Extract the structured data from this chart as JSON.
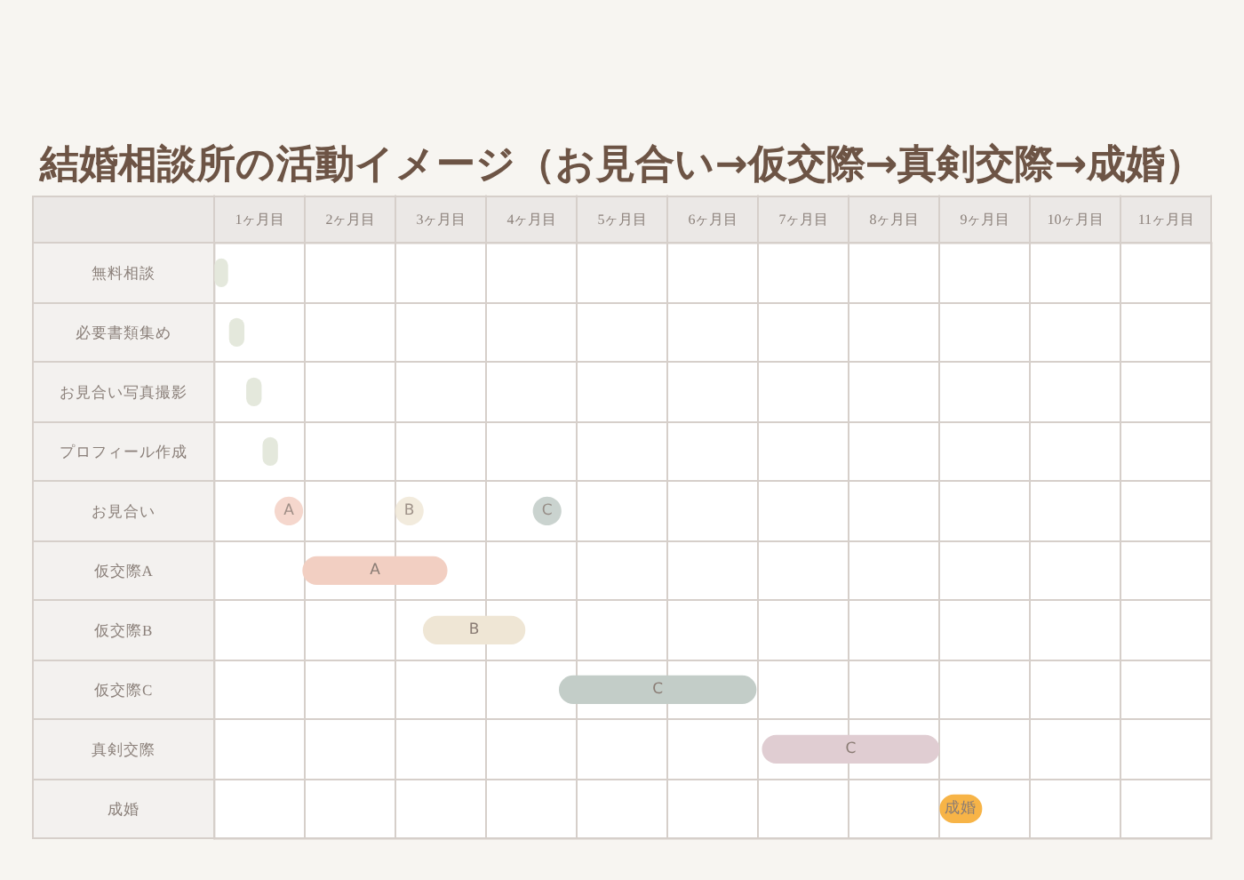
{
  "chart_data": {
    "type": "bar",
    "title": "結婚相談所の活動イメージ（お見合い→仮交際→真剣交際→成婚）",
    "orientation": "horizontal",
    "categories": [
      "無料相談",
      "必要書類集め",
      "お見合い写真撮影",
      "プロフィール作成",
      "お見合い",
      "仮交際A",
      "仮交際B",
      "仮交際C",
      "真剣交際",
      "成婚"
    ],
    "series": [
      {
        "colors": [
          "#e4e8dc",
          "#e4e8dc",
          "#e4e8dc",
          "#e4e8dc",
          null,
          "#f2cfc2",
          "#efe6d5",
          "#c3cdc8",
          "#e0cdd2",
          "#f7b447"
        ],
        "base": [
          0,
          0.16,
          0.35,
          0.53,
          null,
          0.97,
          2.3,
          3.8,
          6.04,
          8.0
        ],
        "values": [
          0.15,
          0.17,
          0.17,
          0.17,
          null,
          1.6,
          1.13,
          2.18,
          1.96,
          0.47
        ],
        "value_labels": [
          null,
          null,
          null,
          null,
          null,
          "A",
          "B",
          "C",
          "C",
          "成婚"
        ]
      },
      {
        "type": "scatter",
        "marker": "circle",
        "x": [
          "お見合い",
          "お見合い",
          "お見合い"
        ],
        "values": [
          0.82,
          2.15,
          3.67
        ],
        "colors": [
          "#f2cdc0",
          "#efe6d5",
          "#bdc8c3"
        ],
        "value_labels": [
          "A",
          "B",
          "C"
        ]
      }
    ],
    "xlim": [
      0,
      11
    ],
    "xticks": [
      {
        "value": 0,
        "label": null
      },
      {
        "value": 0.5,
        "label": "1ヶ月目"
      },
      {
        "value": 1,
        "label": null
      },
      {
        "value": 1.5,
        "label": "2ヶ月目"
      },
      {
        "value": 2,
        "label": null
      },
      {
        "value": 2.5,
        "label": "3ヶ月目"
      },
      {
        "value": 3,
        "label": null
      },
      {
        "value": 3.5,
        "label": "4ヶ月目"
      },
      {
        "value": 4,
        "label": null
      },
      {
        "value": 4.5,
        "label": "5ヶ月目"
      },
      {
        "value": 5,
        "label": null
      },
      {
        "value": 5.5,
        "label": "6ヶ月目"
      },
      {
        "value": 6,
        "label": null
      },
      {
        "value": 6.5,
        "label": "7ヶ月目"
      },
      {
        "value": 7,
        "label": null
      },
      {
        "value": 7.5,
        "label": "8ヶ月目"
      },
      {
        "value": 8,
        "label": null
      },
      {
        "value": 8.5,
        "label": "9ヶ月目"
      },
      {
        "value": 9,
        "label": null
      },
      {
        "value": 9.5,
        "label": "10ヶ月目"
      },
      {
        "value": 10,
        "label": null
      },
      {
        "value": 10.5,
        "label": "11ヶ月目"
      },
      {
        "value": 11,
        "label": null
      }
    ],
    "grid": true
  }
}
